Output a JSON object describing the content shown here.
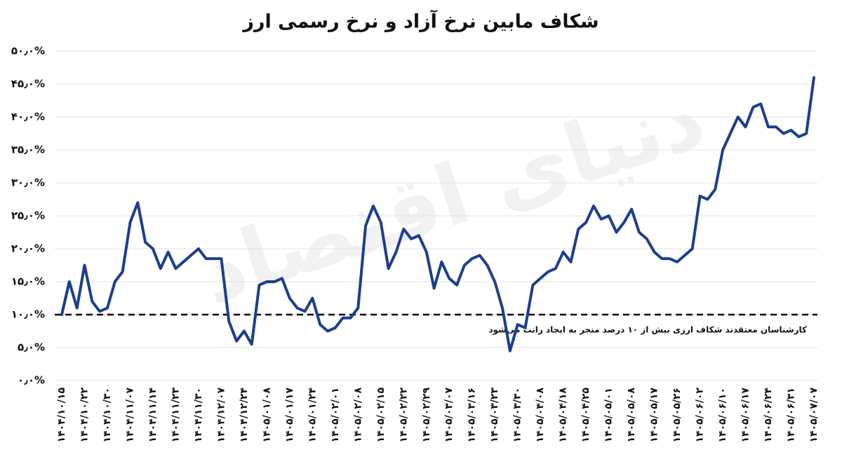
{
  "chart_data": {
    "type": "line",
    "title": "شکاف مابین نرخ آزاد و نرخ رسمی ارز",
    "watermark": "دنیای اقتصاد",
    "annotation": "کارشناسان معتقدند شکاف ارزی بیش از ۱۰ درصد منجر به ایجاد رانت می‌شود",
    "threshold": 10,
    "color": "#1c3f8c",
    "grid": true,
    "ylim": [
      0,
      50
    ],
    "yticks": [
      {
        "value": 0,
        "label": "۰٫۰%"
      },
      {
        "value": 5,
        "label": "۵٫۰%"
      },
      {
        "value": 10,
        "label": "۱۰٫۰%"
      },
      {
        "value": 15,
        "label": "۱۵٫۰%"
      },
      {
        "value": 20,
        "label": "۲۰٫۰%"
      },
      {
        "value": 25,
        "label": "۲۵٫۰%"
      },
      {
        "value": 30,
        "label": "۳۰٫۰%"
      },
      {
        "value": 35,
        "label": "۳۵٫۰%"
      },
      {
        "value": 40,
        "label": "۴۰٫۰%"
      },
      {
        "value": 45,
        "label": "۴۵٫۰%"
      },
      {
        "value": 50,
        "label": "۵۰٫۰%"
      }
    ],
    "categories": [
      "۱۴۰۴/۱۰/۱۵",
      null,
      null,
      "۱۴۰۴/۱۰/۲۲",
      null,
      null,
      "۱۴۰۴/۱۰/۳۰",
      null,
      null,
      "۱۴۰۴/۱۱/۰۷",
      null,
      null,
      "۱۴۰۴/۱۱/۱۴",
      null,
      null,
      "۱۴۰۴/۱۱/۲۳",
      null,
      null,
      "۱۴۰۴/۱۱/۳۰",
      null,
      null,
      "۱۴۰۴/۱۲/۰۷",
      null,
      null,
      "۱۴۰۴/۱۲/۲۴",
      null,
      null,
      "۱۴۰۵/۰۱/۰۸",
      null,
      null,
      "۱۴۰۵/۰۱/۱۷",
      null,
      null,
      "۱۴۰۵/۰۱/۲۴",
      null,
      null,
      "۱۴۰۵/۰۲/۰۱",
      null,
      null,
      "۱۴۰۵/۰۲/۰۸",
      null,
      null,
      "۱۴۰۵/۰۲/۱۵",
      null,
      null,
      "۱۴۰۵/۰۲/۲۲",
      null,
      null,
      "۱۴۰۵/۰۲/۲۹",
      null,
      null,
      "۱۴۰۵/۰۳/۰۷",
      null,
      null,
      "۱۴۰۵/۰۳/۱۶",
      null,
      null,
      "۱۴۰۵/۰۳/۲۳",
      null,
      null,
      "۱۴۰۵/۰۳/۳۰",
      null,
      null,
      "۱۴۰۵/۰۴/۰۸",
      null,
      null,
      "۱۴۰۵/۰۴/۱۸",
      null,
      null,
      "۱۴۰۵/۰۴/۲۵",
      null,
      null,
      "۱۴۰۵/۰۵/۰۱",
      null,
      null,
      "۱۴۰۵/۰۵/۰۸",
      null,
      null,
      "۱۴۰۵/۰۵/۱۷",
      null,
      null,
      "۱۴۰۵/۰۵/۲۶",
      null,
      null,
      "۱۴۰۵/۰۶/۰۲",
      null,
      null,
      "۱۴۰۵/۰۶/۱۰",
      null,
      null,
      "۱۴۰۵/۰۶/۱۷",
      null,
      null,
      "۱۴۰۵/۰۶/۲۴",
      null,
      null,
      "۱۴۰۵/۰۶/۳۱",
      null,
      null,
      "۱۴۰۵/۰۷/۰۷"
    ],
    "values": [
      10,
      15,
      11,
      17.5,
      12,
      10.5,
      11,
      15,
      16.5,
      24,
      27,
      21,
      20,
      17,
      19.5,
      17,
      18,
      19,
      20,
      18.5,
      18.5,
      18.5,
      9,
      6,
      7.5,
      5.5,
      14.5,
      15,
      15,
      15.5,
      12.5,
      11,
      10.5,
      12.5,
      8.5,
      7.5,
      8,
      9.5,
      9.5,
      11,
      23.5,
      26.5,
      24,
      17,
      19.5,
      23,
      21.5,
      22,
      19.5,
      14,
      18,
      15.5,
      14.5,
      17.5,
      18.5,
      19,
      17.5,
      15,
      11,
      4.5,
      8.5,
      8,
      14.5,
      15.5,
      16.5,
      17,
      19.5,
      18,
      23,
      24,
      26.5,
      24.5,
      25,
      22.5,
      24,
      26,
      22.5,
      21.5,
      19.5,
      18.5,
      18.5,
      18,
      19,
      20,
      28,
      27.5,
      29,
      35,
      37.5,
      40,
      38.5,
      41.5,
      42,
      38.5,
      38.5,
      37.5,
      38,
      37,
      37.5,
      46
    ]
  }
}
